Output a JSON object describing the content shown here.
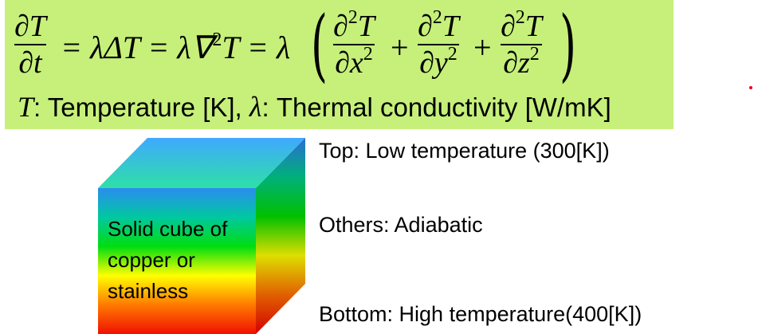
{
  "equation": {
    "lhs_num": "∂T",
    "lhs_den": "∂t",
    "mid": "= λΔT = λ∇",
    "mid_sup": "2",
    "mid_tail": "T = λ",
    "term1_num": "∂",
    "term1_num_sup": "2",
    "term1_num_tail": "T",
    "term1_den": "∂x",
    "term1_den_sup": "2",
    "plus1": "+",
    "term2_num": "∂",
    "term2_num_sup": "2",
    "term2_num_tail": "T",
    "term2_den": "∂y",
    "term2_den_sup": "2",
    "plus2": "+",
    "term3_num": "∂",
    "term3_num_sup": "2",
    "term3_num_tail": "T",
    "term3_den": "∂z",
    "term3_den_sup": "2",
    "paren_open": "(",
    "paren_close": ")"
  },
  "definitions": {
    "t_symbol": "T",
    "t_desc": ": Temperature [K], ",
    "lambda_symbol": "λ",
    "lambda_desc": ": Thermal conductivity [W/mK]"
  },
  "cube": {
    "label": "Solid cube of copper or stainless",
    "colors": {
      "top": [
        "#3fa9ff",
        "#2ee0a6"
      ],
      "front": [
        "#2a8cf0",
        "#00c8a0",
        "#00dd10",
        "#ffff00",
        "#ff7a00",
        "#f01000"
      ],
      "side": [
        "#2a6cd6",
        "#00b07a",
        "#00c000",
        "#dede00",
        "#e06000",
        "#d40000"
      ]
    }
  },
  "boundary_labels": {
    "top": "Top: Low temperature (300[K])",
    "others": "Others: Adiabatic",
    "bottom": "Bottom: High temperature(400[K])"
  },
  "accent": {
    "equation_bg": "#c6f07a",
    "dot": "#e8001c"
  }
}
